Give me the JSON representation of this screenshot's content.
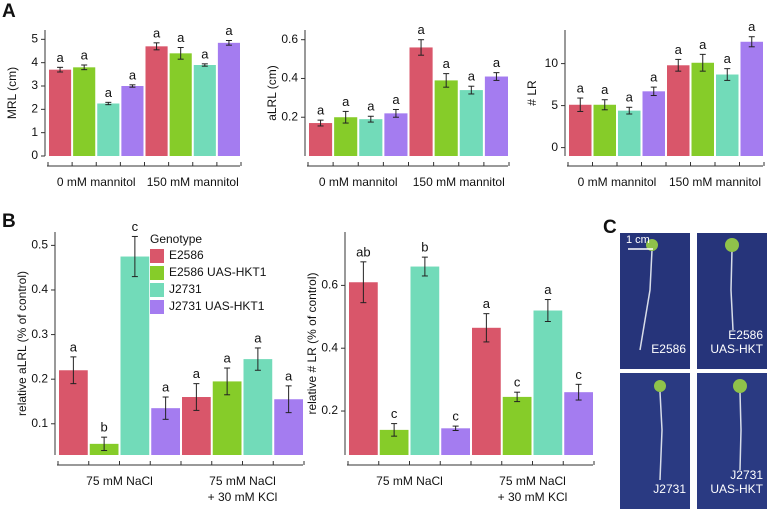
{
  "panels": [
    "A",
    "B",
    "C"
  ],
  "chart_data": [
    {
      "type": "bar",
      "ylabel": "MRL (cm)",
      "categories": [
        "0 mM mannitol",
        "150 mM mannitol"
      ],
      "ylim": [
        0,
        5.4
      ],
      "yticks": [
        0,
        1,
        2,
        3,
        4,
        5
      ],
      "series": [
        {
          "color": "#d9566a",
          "values": [
            3.7,
            4.7
          ],
          "errors": [
            0.1,
            0.15
          ],
          "letters": [
            "a",
            "a"
          ]
        },
        {
          "color": "#86cc29",
          "values": [
            3.8,
            4.4
          ],
          "errors": [
            0.1,
            0.25
          ],
          "letters": [
            "a",
            "a"
          ]
        },
        {
          "color": "#72dbb9",
          "values": [
            2.25,
            3.9
          ],
          "errors": [
            0.05,
            0.05
          ],
          "letters": [
            "a",
            "a"
          ]
        },
        {
          "color": "#a47cf0",
          "values": [
            3.0,
            4.85
          ],
          "errors": [
            0.05,
            0.1
          ],
          "letters": [
            "a",
            "a"
          ]
        }
      ]
    },
    {
      "type": "bar",
      "ylabel": "aLRL (cm)",
      "categories": [
        "0 mM mannitol",
        "150 mM mannitol"
      ],
      "ylim": [
        0,
        0.65
      ],
      "yticks": [
        0.2,
        0.4,
        0.6
      ],
      "series": [
        {
          "color": "#d9566a",
          "values": [
            0.17,
            0.56
          ],
          "errors": [
            0.015,
            0.04
          ],
          "letters": [
            "a",
            "a"
          ]
        },
        {
          "color": "#86cc29",
          "values": [
            0.2,
            0.39
          ],
          "errors": [
            0.03,
            0.035
          ],
          "letters": [
            "a",
            "a"
          ]
        },
        {
          "color": "#72dbb9",
          "values": [
            0.19,
            0.34
          ],
          "errors": [
            0.015,
            0.02
          ],
          "letters": [
            "a",
            "a"
          ]
        },
        {
          "color": "#a47cf0",
          "values": [
            0.22,
            0.41
          ],
          "errors": [
            0.02,
            0.02
          ],
          "letters": [
            "a",
            "a"
          ]
        }
      ]
    },
    {
      "type": "bar",
      "ylabel": "# LR",
      "categories": [
        "0 mM mannitol",
        "150 mM mannitol"
      ],
      "ylim": [
        -1,
        14
      ],
      "yticks": [
        0,
        5,
        10
      ],
      "series": [
        {
          "color": "#d9566a",
          "values": [
            5.1,
            9.8
          ],
          "errors": [
            0.8,
            0.7
          ],
          "letters": [
            "a",
            "a"
          ]
        },
        {
          "color": "#86cc29",
          "values": [
            5.1,
            10.1
          ],
          "errors": [
            0.6,
            1.0
          ],
          "letters": [
            "a",
            "a"
          ]
        },
        {
          "color": "#72dbb9",
          "values": [
            4.4,
            8.7
          ],
          "errors": [
            0.4,
            0.7
          ],
          "letters": [
            "a",
            "a"
          ]
        },
        {
          "color": "#a47cf0",
          "values": [
            6.7,
            12.6
          ],
          "errors": [
            0.5,
            0.6
          ],
          "letters": [
            "a",
            "a"
          ]
        }
      ]
    },
    {
      "type": "bar",
      "ylabel": "relative aLRL (% of control)",
      "categories": [
        [
          "75 mM NaCl"
        ],
        [
          "75 mM NaCl",
          "+ 30 mM KCl"
        ]
      ],
      "ylim": [
        0.03,
        0.53
      ],
      "yticks": [
        0.1,
        0.2,
        0.3,
        0.4,
        0.5
      ],
      "legend_title": "Genotype",
      "series": [
        {
          "name": "E2586",
          "color": "#d9566a",
          "values": [
            0.22,
            0.16
          ],
          "errors": [
            0.03,
            0.03
          ],
          "letters": [
            "a",
            "a"
          ]
        },
        {
          "name": "E2586 UAS-HKT1",
          "color": "#86cc29",
          "values": [
            0.055,
            0.195
          ],
          "errors": [
            0.015,
            0.03
          ],
          "letters": [
            "b",
            "a"
          ]
        },
        {
          "name": "J2731",
          "color": "#72dbb9",
          "values": [
            0.475,
            0.245
          ],
          "errors": [
            0.045,
            0.025
          ],
          "letters": [
            "c",
            "a"
          ]
        },
        {
          "name": "J2731 UAS-HKT1",
          "color": "#a47cf0",
          "values": [
            0.135,
            0.155
          ],
          "errors": [
            0.025,
            0.03
          ],
          "letters": [
            "a",
            "a"
          ]
        }
      ]
    },
    {
      "type": "bar",
      "ylabel": "relative # LR (% of control)",
      "categories": [
        [
          "75 mM NaCl"
        ],
        [
          "75 mM NaCl",
          "+ 30 mM KCl"
        ]
      ],
      "ylim": [
        0.06,
        0.77
      ],
      "yticks": [
        0.2,
        0.4,
        0.6
      ],
      "series": [
        {
          "color": "#d9566a",
          "values": [
            0.61,
            0.465
          ],
          "errors": [
            0.065,
            0.045
          ],
          "letters": [
            "ab",
            "a"
          ]
        },
        {
          "color": "#86cc29",
          "values": [
            0.14,
            0.245
          ],
          "errors": [
            0.02,
            0.015
          ],
          "letters": [
            "c",
            "c"
          ]
        },
        {
          "color": "#72dbb9",
          "values": [
            0.66,
            0.52
          ],
          "errors": [
            0.03,
            0.035
          ],
          "letters": [
            "b",
            "a"
          ]
        },
        {
          "color": "#a47cf0",
          "values": [
            0.145,
            0.26
          ],
          "errors": [
            0.007,
            0.025
          ],
          "letters": [
            "c",
            "c"
          ]
        }
      ]
    }
  ],
  "photos": {
    "scale_bar": "1 cm",
    "labels": [
      [
        "E2586"
      ],
      [
        "E2586",
        "UAS-HKT"
      ],
      [
        "J2731"
      ],
      [
        "J2731",
        "UAS-HKT"
      ]
    ]
  }
}
